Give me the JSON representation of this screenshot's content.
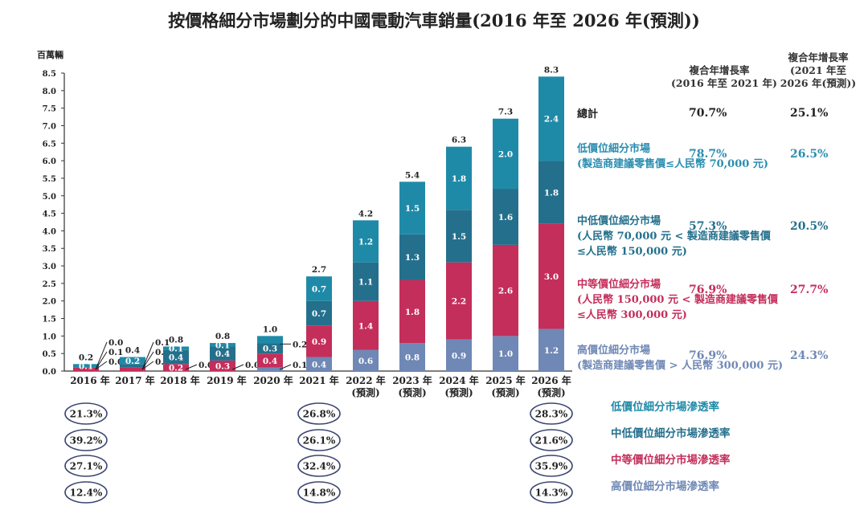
{
  "title": "按價格細分市場劃分的中國電動汽車銷量(2016 年至 2026 年(預測))",
  "chart_data": {
    "type": "bar",
    "stacked": true,
    "ylabel": "百萬輛",
    "ylim": [
      0,
      8.5
    ],
    "yticks": [
      "0.0",
      "0.5",
      "1.0",
      "1.5",
      "2.0",
      "2.5",
      "3.0",
      "3.5",
      "4.0",
      "4.5",
      "5.0",
      "5.5",
      "6.0",
      "6.5",
      "7.0",
      "7.5",
      "8.0",
      "8.5"
    ],
    "categories": [
      "2016 年",
      "2017 年",
      "2018 年",
      "2019 年",
      "2020 年",
      "2021 年",
      "2022 年",
      "2023 年",
      "2024 年",
      "2025 年",
      "2026 年"
    ],
    "category_sublabels": [
      "",
      "",
      "",
      "",
      "",
      "",
      "(預測)",
      "(預測)",
      "(預測)",
      "(預測)",
      "(預測)"
    ],
    "series": [
      {
        "name": "高價位細分市場",
        "color": "#6f88b5",
        "values": [
          0.0,
          0.0,
          0.0,
          0.0,
          0.1,
          0.4,
          0.6,
          0.8,
          0.9,
          1.0,
          1.2
        ]
      },
      {
        "name": "中等價位細分市場",
        "color": "#c42e5b",
        "values": [
          0.1,
          0.1,
          0.2,
          0.3,
          0.4,
          0.9,
          1.4,
          1.8,
          2.2,
          2.6,
          3.0
        ]
      },
      {
        "name": "中低價位細分市場",
        "color": "#24708c",
        "values": [
          0.0,
          0.1,
          0.4,
          0.4,
          0.3,
          0.7,
          1.1,
          1.3,
          1.5,
          1.6,
          1.8
        ]
      },
      {
        "name": "低價位細分市場",
        "color": "#1f8aa8",
        "values": [
          0.1,
          0.2,
          0.1,
          0.1,
          0.2,
          0.7,
          1.2,
          1.5,
          1.8,
          2.0,
          2.4
        ]
      }
    ],
    "totals": [
      0.2,
      0.4,
      0.8,
      0.8,
      1.0,
      2.7,
      4.2,
      5.4,
      6.3,
      7.3,
      8.3
    ],
    "grid": false,
    "legend_placement": "right"
  },
  "cagr": {
    "header_1": [
      "複合年增長率",
      "(2016 年至 2021 年)"
    ],
    "header_2": [
      "複合年增長率",
      "(2021 年至",
      "2026 年(預測))"
    ],
    "rows": [
      {
        "label": "總計",
        "sub": [],
        "c1": "70.7%",
        "c2": "25.1%",
        "color": "#222222"
      },
      {
        "label": "低價位細分市場",
        "sub": [
          "(製造商建議零售價≤人民幣 70,000 元)"
        ],
        "c1": "78.7%",
        "c2": "26.5%",
        "color": "#2a8db0"
      },
      {
        "label": "中低價位細分市場",
        "sub": [
          "(人民幣 70,000 元 < 製造商建議零售價",
          "≤人民幣 150,000 元)"
        ],
        "c1": "57.3%",
        "c2": "20.5%",
        "color": "#23708c"
      },
      {
        "label": "中等價位細分市場",
        "sub": [
          "(人民幣 150,000 元 < 製造商建議零售價",
          "≤人民幣 300,000 元)"
        ],
        "c1": "76.9%",
        "c2": "27.7%",
        "color": "#c42e5b"
      },
      {
        "label": "高價位細分市場",
        "sub": [
          "(製造商建議零售價 > 人民幣 300,000 元)"
        ],
        "c1": "76.9%",
        "c2": "24.3%",
        "color": "#6f88b5"
      }
    ]
  },
  "penetration": {
    "years": [
      "2016 年",
      "2021 年",
      "2026 年"
    ],
    "rows": [
      {
        "label": "低價位細分市場滲透率",
        "color": "#1f8aa8",
        "values": [
          "21.3%",
          "26.8%",
          "28.3%"
        ]
      },
      {
        "label": "中低價位細分市場滲透率",
        "color": "#24708c",
        "values": [
          "39.2%",
          "26.1%",
          "21.6%"
        ]
      },
      {
        "label": "中等價位細分市場滲透率",
        "color": "#c42e5b",
        "values": [
          "27.1%",
          "32.4%",
          "35.9%"
        ]
      },
      {
        "label": "高價位細分市場滲透率",
        "color": "#6f88b5",
        "values": [
          "12.4%",
          "14.8%",
          "14.3%"
        ]
      }
    ]
  }
}
